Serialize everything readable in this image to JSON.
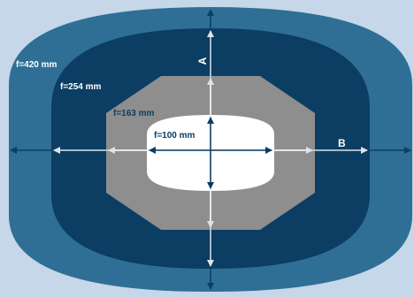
{
  "zones": [
    {
      "label": "f=420 mm",
      "color": "#2f6f96"
    },
    {
      "label": "f=254 mm",
      "color": "#0c3d63"
    },
    {
      "label": "f=163 mm",
      "color": "#8e8e8e"
    },
    {
      "label": "f=100 mm",
      "color": "#ffffff"
    }
  ],
  "axes": {
    "vertical": "A",
    "horizontal": "B"
  },
  "colors": {
    "background": "#c5d7e8",
    "arrow_dark": "#0c3d63",
    "arrow_light": "#dce3ea"
  }
}
